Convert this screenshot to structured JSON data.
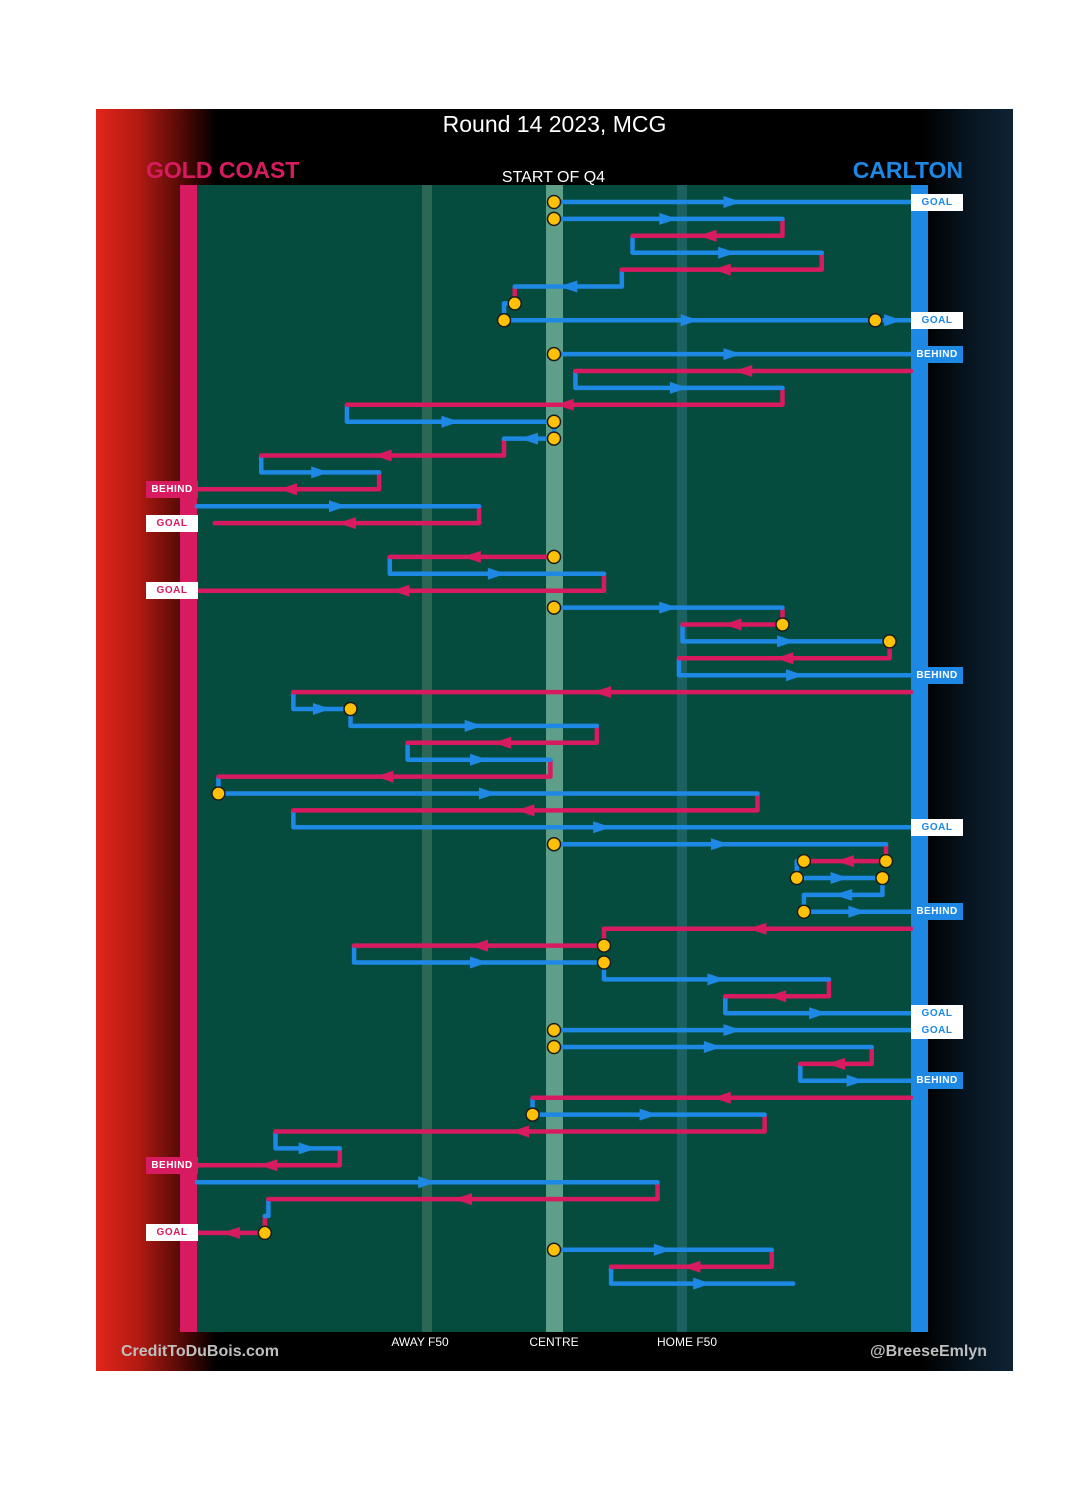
{
  "title": "Round 14 2023, MCG",
  "teams": {
    "home": "GOLD COAST",
    "away": "CARLTON",
    "home_color": "#d81b60",
    "away_color": "#1e88e5"
  },
  "start_label": "START OF Q4",
  "axis_labels": {
    "away_f50": "AWAY F50",
    "centre": "CENTRE",
    "home_f50": "HOME F50"
  },
  "credits": {
    "left": "CreditToDuBois.com",
    "right": "@BreeseEmlyn"
  },
  "colors": {
    "field": "#054c3e",
    "gold_coast": "#d81b60",
    "carlton": "#1e88e5",
    "stoppage": "#ffc107"
  },
  "score_tags": [
    {
      "text": "GOAL",
      "team": "carlton",
      "type": "goal"
    },
    {
      "text": "GOAL",
      "team": "carlton",
      "type": "goal"
    },
    {
      "text": "BEHIND",
      "team": "carlton",
      "type": "behind"
    },
    {
      "text": "BEHIND",
      "team": "gold_coast",
      "type": "behind"
    },
    {
      "text": "GOAL",
      "team": "gold_coast",
      "type": "goal"
    },
    {
      "text": "GOAL",
      "team": "gold_coast",
      "type": "goal"
    },
    {
      "text": "BEHIND",
      "team": "carlton",
      "type": "behind"
    },
    {
      "text": "GOAL",
      "team": "carlton",
      "type": "goal"
    },
    {
      "text": "BEHIND",
      "team": "carlton",
      "type": "behind"
    },
    {
      "text": "GOAL",
      "team": "carlton",
      "type": "goal"
    },
    {
      "text": "GOAL",
      "team": "carlton",
      "type": "goal"
    },
    {
      "text": "BEHIND",
      "team": "carlton",
      "type": "behind"
    },
    {
      "text": "BEHIND",
      "team": "gold_coast",
      "type": "behind"
    },
    {
      "text": "GOAL",
      "team": "gold_coast",
      "type": "goal"
    }
  ],
  "chart_data": {
    "type": "line",
    "title": "Round 14 2023, MCG",
    "x_axis": {
      "range": [
        0,
        100
      ],
      "ticks": [
        {
          "label": "AWAY F50",
          "value": 31.5
        },
        {
          "label": "CENTRE",
          "value": 50
        },
        {
          "label": "HOME F50",
          "value": 68.5
        }
      ]
    },
    "y_axis": {
      "label": "",
      "direction": "top-to-bottom (time)",
      "range": [
        0,
        67
      ]
    },
    "series": [
      {
        "name": "GOLD COAST",
        "color": "#d81b60"
      },
      {
        "name": "CARLTON",
        "color": "#1e88e5"
      }
    ],
    "possessions": [
      {
        "team": "C",
        "row": 1,
        "from": 50,
        "to": 100,
        "start": "bounce",
        "end": "goal"
      },
      {
        "team": "C",
        "row": 2,
        "from": 50,
        "to": 82,
        "start": "bounce"
      },
      {
        "team": "G",
        "row": 3,
        "from": 82,
        "to": 61
      },
      {
        "team": "C",
        "row": 4,
        "from": 61,
        "to": 87.5
      },
      {
        "team": "G",
        "row": 5,
        "from": 87.5,
        "to": 59.5
      },
      {
        "team": "C",
        "row": 6,
        "from": 59.5,
        "to": 44.5
      },
      {
        "team": "G",
        "row": 7,
        "from": 44.5,
        "to": 44.5,
        "end": "stoppage"
      },
      {
        "team": "C",
        "row": 8,
        "from": 43,
        "to": 95,
        "start": "stoppage",
        "end": "stoppage"
      },
      {
        "team": "C",
        "row": 8,
        "from": 95,
        "to": 100,
        "end": "goal"
      },
      {
        "team": "C",
        "row": 10,
        "from": 50,
        "to": 100,
        "start": "bounce",
        "end": "behind"
      },
      {
        "team": "G",
        "row": 11,
        "from": 100,
        "to": 53
      },
      {
        "team": "C",
        "row": 12,
        "from": 53,
        "to": 82
      },
      {
        "team": "G",
        "row": 13,
        "from": 82,
        "to": 21
      },
      {
        "team": "C",
        "row": 14,
        "from": 21,
        "to": 50,
        "end": "stoppage"
      },
      {
        "team": "C",
        "row": 15,
        "from": 50,
        "to": 43,
        "start": "stoppage"
      },
      {
        "team": "G",
        "row": 16,
        "from": 43,
        "to": 9
      },
      {
        "team": "C",
        "row": 17,
        "from": 9,
        "to": 25.5
      },
      {
        "team": "G",
        "row": 18,
        "from": 25.5,
        "to": 0,
        "end": "behind"
      },
      {
        "team": "C",
        "row": 19,
        "from": 0,
        "to": 39.5
      },
      {
        "team": "G",
        "row": 20,
        "from": 39.5,
        "to": 2.5,
        "end": "goal"
      },
      {
        "team": "G",
        "row": 22,
        "from": 50,
        "to": 27,
        "start": "bounce"
      },
      {
        "team": "C",
        "row": 23,
        "from": 27,
        "to": 57
      },
      {
        "team": "G",
        "row": 24,
        "from": 57,
        "to": 0,
        "end": "goal"
      },
      {
        "team": "C",
        "row": 25,
        "from": 50,
        "to": 82,
        "start": "bounce"
      },
      {
        "team": "G",
        "row": 26,
        "from": 82,
        "to": 68,
        "start": "stoppage"
      },
      {
        "team": "C",
        "row": 27,
        "from": 68,
        "to": 97,
        "end": "stoppage"
      },
      {
        "team": "G",
        "row": 28,
        "from": 97,
        "to": 67.5
      },
      {
        "team": "C",
        "row": 29,
        "from": 67.5,
        "to": 100,
        "end": "behind"
      },
      {
        "team": "G",
        "row": 30,
        "from": 100,
        "to": 13.5
      },
      {
        "team": "C",
        "row": 31,
        "from": 13.5,
        "to": 21.5,
        "end": "stoppage"
      },
      {
        "team": "C",
        "row": 32,
        "from": 21.5,
        "to": 56
      },
      {
        "team": "G",
        "row": 33,
        "from": 56,
        "to": 29.5
      },
      {
        "team": "C",
        "row": 34,
        "from": 29.5,
        "to": 49.5
      },
      {
        "team": "G",
        "row": 35,
        "from": 49.5,
        "to": 3
      },
      {
        "team": "C",
        "row": 36,
        "from": 3,
        "to": 78.5,
        "start": "stoppage"
      },
      {
        "team": "G",
        "row": 37,
        "from": 78.5,
        "to": 13.5
      },
      {
        "team": "C",
        "row": 38,
        "from": 13.5,
        "to": 100,
        "end": "goal"
      },
      {
        "team": "C",
        "row": 39,
        "from": 50,
        "to": 96.5,
        "start": "bounce"
      },
      {
        "team": "G",
        "row": 40,
        "from": 96.5,
        "to": 85,
        "start": "stoppage",
        "end": "stoppage"
      },
      {
        "team": "C",
        "row": 41,
        "from": 84,
        "to": 96,
        "start": "stoppage",
        "end": "stoppage"
      },
      {
        "team": "C",
        "row": 42,
        "from": 96,
        "to": 85
      },
      {
        "team": "C",
        "row": 43,
        "from": 85,
        "to": 100,
        "start": "stoppage",
        "end": "behind"
      },
      {
        "team": "G",
        "row": 44,
        "from": 100,
        "to": 57
      },
      {
        "team": "G",
        "row": 45,
        "from": 57,
        "to": 22,
        "start": "stoppage"
      },
      {
        "team": "C",
        "row": 46,
        "from": 22,
        "to": 57,
        "end": "stoppage"
      },
      {
        "team": "C",
        "row": 47,
        "from": 57,
        "to": 88.5
      },
      {
        "team": "G",
        "row": 48,
        "from": 88.5,
        "to": 74
      },
      {
        "team": "C",
        "row": 49,
        "from": 74,
        "to": 100,
        "end": "goal"
      },
      {
        "team": "C",
        "row": 50,
        "from": 50,
        "to": 100,
        "start": "bounce",
        "end": "goal"
      },
      {
        "team": "C",
        "row": 51,
        "from": 50,
        "to": 94.5,
        "start": "bounce"
      },
      {
        "team": "G",
        "row": 52,
        "from": 94.5,
        "to": 84.5
      },
      {
        "team": "C",
        "row": 53,
        "from": 84.5,
        "to": 100,
        "end": "behind"
      },
      {
        "team": "G",
        "row": 54,
        "from": 100,
        "to": 47
      },
      {
        "team": "C",
        "row": 55,
        "from": 47,
        "to": 79.5,
        "start": "stoppage"
      },
      {
        "team": "G",
        "row": 56,
        "from": 79.5,
        "to": 11
      },
      {
        "team": "C",
        "row": 57,
        "from": 11,
        "to": 20
      },
      {
        "team": "G",
        "row": 58,
        "from": 20,
        "to": 0,
        "end": "behind"
      },
      {
        "team": "C",
        "row": 59,
        "from": 0,
        "to": 64.5
      },
      {
        "team": "G",
        "row": 60,
        "from": 64.5,
        "to": 10
      },
      {
        "team": "C",
        "row": 61,
        "from": 10,
        "to": 9.5
      },
      {
        "team": "G",
        "row": 62,
        "from": 9.5,
        "to": 0,
        "start": "stoppage",
        "end": "goal"
      },
      {
        "team": "C",
        "row": 63,
        "from": 50,
        "to": 80.5,
        "start": "bounce"
      },
      {
        "team": "G",
        "row": 64,
        "from": 80.5,
        "to": 58
      },
      {
        "team": "C",
        "row": 65,
        "from": 58,
        "to": 83.5
      }
    ]
  }
}
